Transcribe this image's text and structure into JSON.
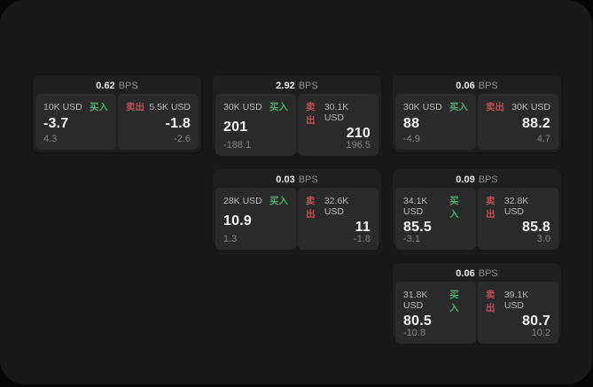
{
  "colors": {
    "page_bg": "#060606",
    "panel_bg": "#191919",
    "card_bg": "#1f1f1f",
    "tile_bg": "#2a2a2a",
    "buy_green": "#4fa873",
    "sell_red": "#bf4d5c"
  },
  "labels": {
    "buy": "买入",
    "sell": "卖出",
    "bps": "BPS"
  },
  "cards": [
    {
      "bps": "0.62",
      "buy": {
        "size": "10K USD",
        "value": "-3.7",
        "sub": "4.3"
      },
      "sell": {
        "size": "5.5K USD",
        "value": "-1.8",
        "sub": "-2.6"
      }
    },
    {
      "bps": "2.92",
      "buy": {
        "size": "30K USD",
        "value": "201",
        "sub": "-188.1"
      },
      "sell": {
        "size": "30.1K USD",
        "value": "210",
        "sub": "196.5"
      }
    },
    {
      "bps": "0.06",
      "buy": {
        "size": "30K USD",
        "value": "88",
        "sub": "-4.9"
      },
      "sell": {
        "size": "30K USD",
        "value": "88.2",
        "sub": "4.7"
      }
    },
    {
      "bps": "0.03",
      "buy": {
        "size": "28K USD",
        "value": "10.9",
        "sub": "1.3"
      },
      "sell": {
        "size": "32.6K USD",
        "value": "11",
        "sub": "-1.8"
      }
    },
    {
      "bps": "0.09",
      "buy": {
        "size": "34.1K USD",
        "value": "85.5",
        "sub": "-3.1"
      },
      "sell": {
        "size": "32.8K USD",
        "value": "85.8",
        "sub": "3.0"
      }
    },
    {
      "bps": "0.06",
      "buy": {
        "size": "31.8K USD",
        "value": "80.5",
        "sub": "-10.8"
      },
      "sell": {
        "size": "39.1K USD",
        "value": "80.7",
        "sub": "10.2"
      }
    }
  ]
}
